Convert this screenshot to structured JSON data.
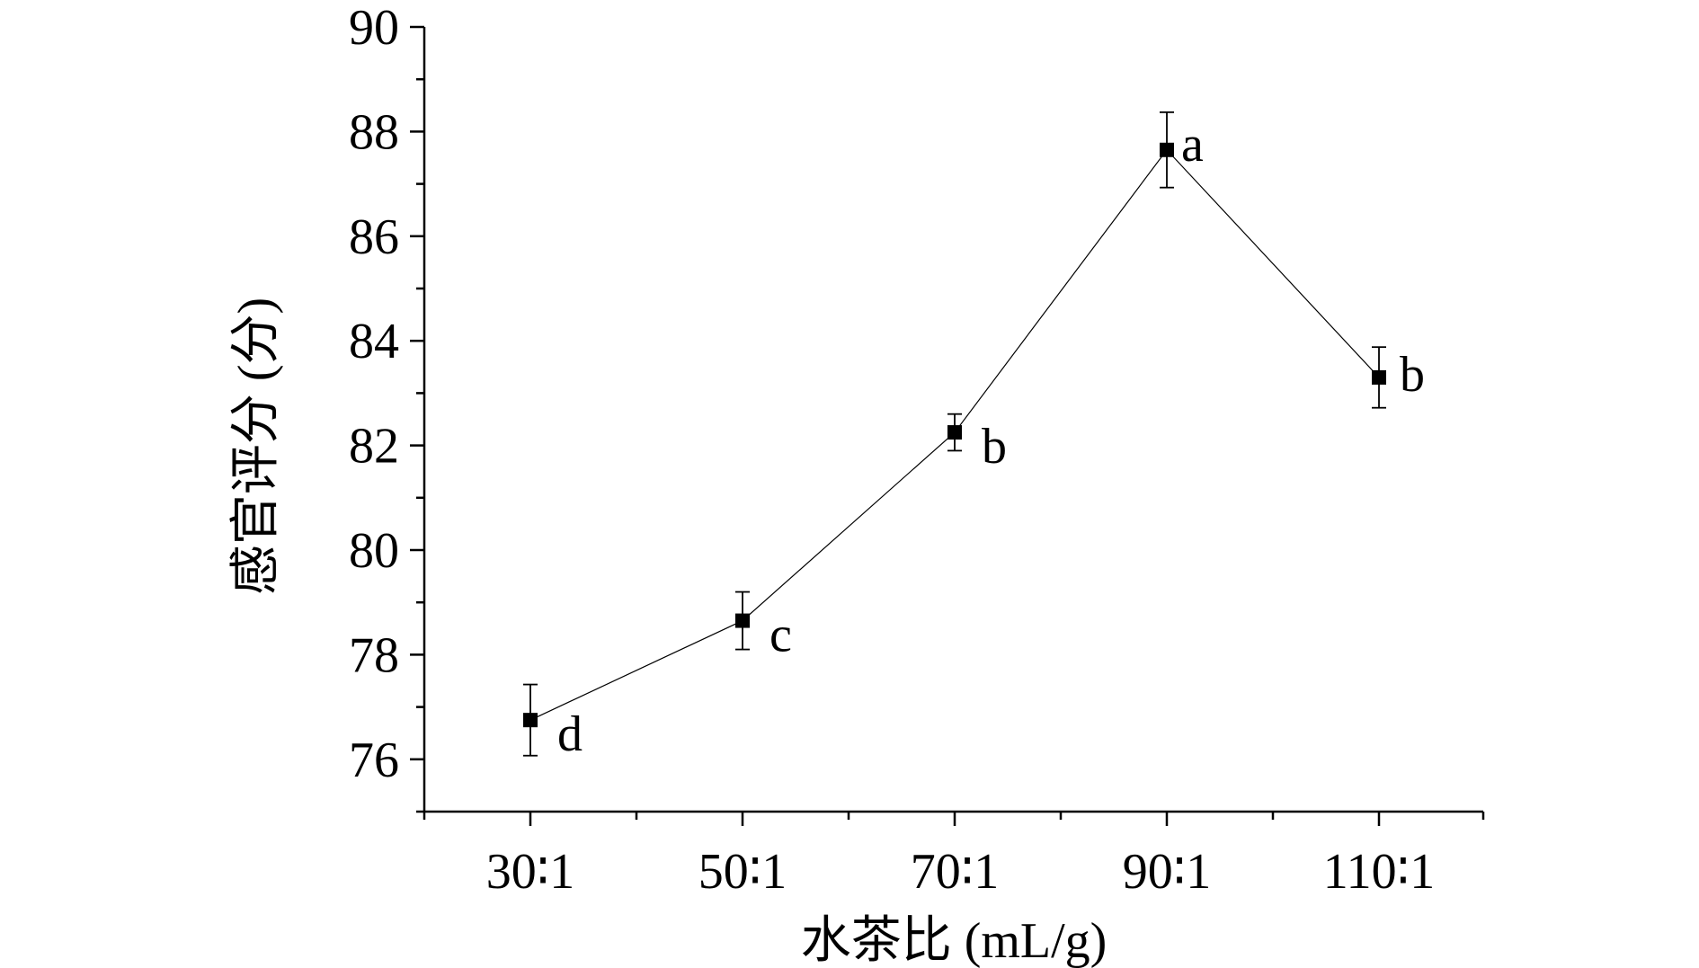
{
  "chart_data": {
    "type": "line",
    "xlabel": "水茶比 (mL/g)",
    "ylabel": "感官评分 (分)",
    "categories": [
      "30∶1",
      "50∶1",
      "70∶1",
      "90∶1",
      "110∶1"
    ],
    "ylim": [
      75,
      90
    ],
    "yticks": [
      76,
      78,
      80,
      82,
      84,
      86,
      88,
      90
    ],
    "grid": false,
    "series": [
      {
        "values": [
          76.75,
          78.65,
          82.25,
          87.65,
          83.3
        ],
        "errors": [
          0.68,
          0.55,
          0.35,
          0.72,
          0.58
        ],
        "labels": [
          "d",
          "c",
          "b",
          "a",
          "b"
        ],
        "marker": "square",
        "color": "#000000"
      }
    ]
  }
}
